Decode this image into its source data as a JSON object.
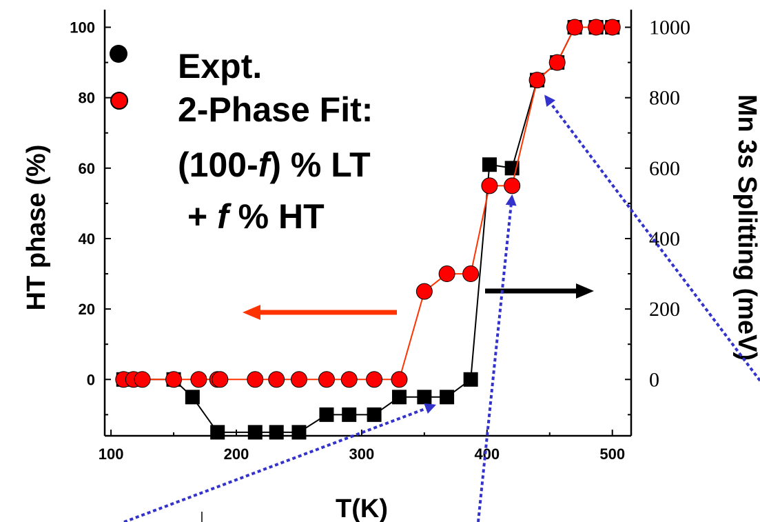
{
  "chart_data": {
    "type": "line",
    "xlabel": "T(K)",
    "ylabel_left": "HT phase (%)",
    "ylabel_right": "Mn 3s Splitting (meV)",
    "xlim": [
      95,
      515
    ],
    "ylim_left": [
      -16,
      105
    ],
    "ylim_right": [
      -160,
      1050
    ],
    "x_ticks": [
      100,
      200,
      300,
      400,
      500
    ],
    "y_left_ticks": [
      0,
      20,
      40,
      60,
      80,
      100
    ],
    "y_right_ticks": [
      0,
      200,
      400,
      600,
      800,
      1000
    ],
    "legend": {
      "expt": "Expt.",
      "fit_line1": "2-Phase Fit:",
      "fit_line2_prefix": "(100-",
      "fit_line2_var": "f",
      "fit_line2_suffix": ") % LT",
      "fit_line3_prefix": "+ ",
      "fit_line3_var": "f",
      "fit_line3_suffix": " % HT"
    },
    "series": [
      {
        "name": "Expt.",
        "axis": "right",
        "color": "#000000",
        "marker": "square",
        "x": [
          110,
          122,
          150,
          165,
          185,
          215,
          232,
          250,
          272,
          290,
          310,
          330,
          350,
          368,
          387,
          402,
          420,
          440,
          456,
          470,
          487,
          500
        ],
        "y": [
          0,
          0,
          0,
          -50,
          -150,
          -150,
          -150,
          -150,
          -100,
          -100,
          -100,
          -50,
          -50,
          -50,
          0,
          610,
          600,
          850,
          900,
          1000,
          1000,
          1000
        ]
      },
      {
        "name": "2-Phase Fit",
        "axis": "left",
        "color": "#ff0000",
        "marker": "circle",
        "x": [
          110,
          118,
          125,
          150,
          170,
          185,
          187,
          215,
          232,
          250,
          272,
          290,
          310,
          330,
          350,
          368,
          387,
          402,
          420,
          440,
          456,
          470,
          487,
          500
        ],
        "y": [
          0,
          0,
          0,
          0,
          0,
          0,
          0,
          0,
          0,
          0,
          0,
          0,
          0,
          0,
          25,
          30,
          30,
          55,
          55,
          85,
          90,
          100,
          100,
          100
        ]
      }
    ],
    "arrows": [
      {
        "direction": "left",
        "points_to_axis": "left",
        "color": "#ff3300"
      },
      {
        "direction": "right",
        "points_to_axis": "right",
        "color": "#000000"
      }
    ],
    "colors": {
      "expt": "#000000",
      "fit": "#ff0000",
      "fit_line": "#ff3300",
      "dotted_arrows": "#3333cc"
    }
  }
}
